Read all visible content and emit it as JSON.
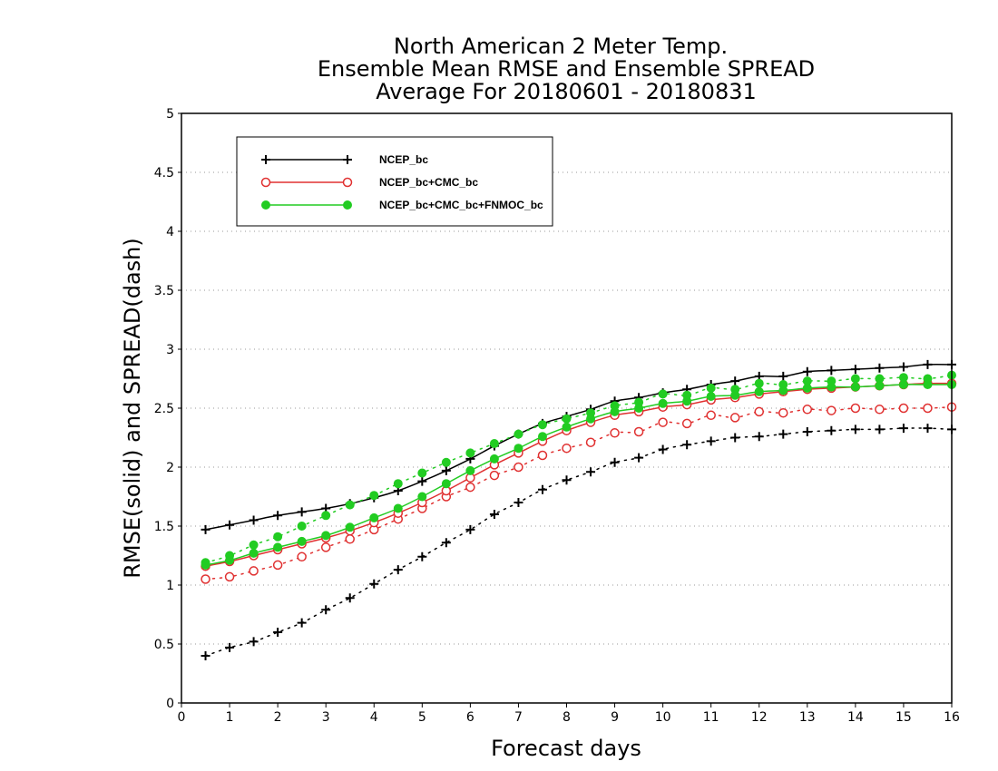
{
  "chart_data": {
    "type": "line",
    "title": [
      "North American 2 Meter Temp.",
      "Ensemble Mean RMSE and Ensemble SPREAD",
      "Average For 20180601 - 20180831"
    ],
    "xlabel": "Forecast days",
    "ylabel": "RMSE(solid) and SPREAD(dash)",
    "xlim": [
      0,
      16
    ],
    "ylim": [
      0,
      5
    ],
    "x_ticks": [
      "0",
      "1",
      "2",
      "3",
      "4",
      "5",
      "6",
      "7",
      "8",
      "9",
      "10",
      "11",
      "12",
      "13",
      "14",
      "15",
      "16"
    ],
    "y_ticks": [
      "0",
      "0.5",
      "1",
      "1.5",
      "2",
      "2.5",
      "3",
      "3.5",
      "4",
      "4.5",
      "5"
    ],
    "grid": "horizontal dotted",
    "legend_position": "top-left",
    "x": [
      0.5,
      1,
      1.5,
      2,
      2.5,
      3,
      3.5,
      4,
      4.5,
      5,
      5.5,
      6,
      6.5,
      7,
      7.5,
      8,
      8.5,
      9,
      9.5,
      10,
      10.5,
      11,
      11.5,
      12,
      12.5,
      13,
      13.5,
      14,
      14.5,
      15,
      15.5,
      16
    ],
    "series": [
      {
        "name": "NCEP_bc",
        "color": "#000000",
        "marker": "plus",
        "rmse": [
          1.47,
          1.51,
          1.55,
          1.59,
          1.62,
          1.65,
          1.69,
          1.74,
          1.8,
          1.88,
          1.97,
          2.07,
          2.18,
          2.28,
          2.37,
          2.43,
          2.49,
          2.56,
          2.59,
          2.63,
          2.66,
          2.7,
          2.73,
          2.77,
          2.77,
          2.81,
          2.82,
          2.83,
          2.84,
          2.85,
          2.87,
          2.87
        ],
        "spread": [
          0.4,
          0.47,
          0.52,
          0.6,
          0.68,
          0.79,
          0.89,
          1.01,
          1.13,
          1.24,
          1.36,
          1.47,
          1.6,
          1.7,
          1.81,
          1.89,
          1.96,
          2.04,
          2.08,
          2.15,
          2.19,
          2.22,
          2.25,
          2.26,
          2.28,
          2.3,
          2.31,
          2.32,
          2.32,
          2.33,
          2.33,
          2.32
        ]
      },
      {
        "name": "NCEP_bc+CMC_bc",
        "color": "#e03030",
        "marker": "open-circle",
        "rmse": [
          1.16,
          1.2,
          1.25,
          1.3,
          1.35,
          1.4,
          1.46,
          1.53,
          1.61,
          1.7,
          1.8,
          1.91,
          2.02,
          2.12,
          2.22,
          2.31,
          2.38,
          2.44,
          2.47,
          2.51,
          2.53,
          2.57,
          2.59,
          2.62,
          2.64,
          2.66,
          2.67,
          2.68,
          2.69,
          2.7,
          2.71,
          2.71
        ],
        "spread": [
          1.05,
          1.07,
          1.12,
          1.17,
          1.24,
          1.32,
          1.39,
          1.47,
          1.56,
          1.65,
          1.75,
          1.83,
          1.93,
          2.0,
          2.1,
          2.16,
          2.21,
          2.29,
          2.3,
          2.38,
          2.37,
          2.44,
          2.42,
          2.47,
          2.46,
          2.49,
          2.48,
          2.5,
          2.49,
          2.5,
          2.5,
          2.51
        ]
      },
      {
        "name": "NCEP_bc+CMC_bc+FNMOC_bc",
        "color": "#22cc22",
        "marker": "filled-circle",
        "rmse": [
          1.17,
          1.21,
          1.27,
          1.32,
          1.37,
          1.42,
          1.49,
          1.57,
          1.65,
          1.75,
          1.86,
          1.97,
          2.07,
          2.16,
          2.26,
          2.34,
          2.41,
          2.47,
          2.5,
          2.54,
          2.56,
          2.6,
          2.61,
          2.64,
          2.65,
          2.67,
          2.68,
          2.68,
          2.69,
          2.7,
          2.7,
          2.7
        ],
        "spread": [
          1.19,
          1.25,
          1.34,
          1.41,
          1.5,
          1.59,
          1.68,
          1.76,
          1.86,
          1.95,
          2.04,
          2.12,
          2.2,
          2.28,
          2.36,
          2.41,
          2.46,
          2.52,
          2.55,
          2.62,
          2.61,
          2.67,
          2.66,
          2.71,
          2.7,
          2.73,
          2.73,
          2.75,
          2.75,
          2.76,
          2.75,
          2.78
        ]
      }
    ]
  }
}
